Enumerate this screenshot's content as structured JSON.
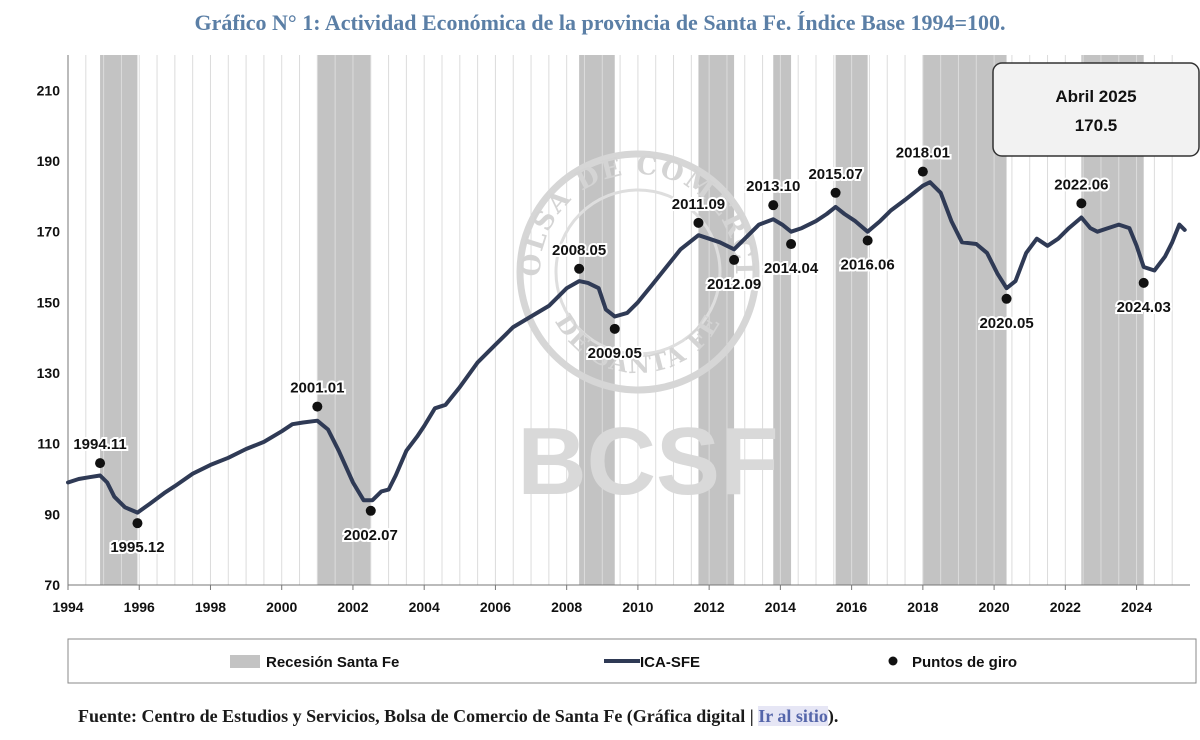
{
  "title": "Gráfico N° 1: Actividad Económica de la provincia de Santa Fe. Índice Base 1994=100.",
  "callout": {
    "line1": "Abril 2025",
    "line2": "170.5"
  },
  "watermark": {
    "seal_top": "BOLSA DE COMERCIO",
    "seal_bottom": "DE SANTA FE",
    "text": "BCSF"
  },
  "source": {
    "text": "Fuente: Centro de Estudios y Servicios, Bolsa de Comercio de Santa Fe (Gráfica digital | ",
    "link": "Ir al sitio",
    "close": ")."
  },
  "colors": {
    "line": "#2f3a55",
    "recession": "#c3c3c3",
    "title": "#5b7fa6",
    "point": "#111111"
  },
  "chart_data": {
    "type": "line",
    "ylim": [
      70,
      220
    ],
    "yticks": [
      70,
      90,
      110,
      130,
      150,
      170,
      190,
      210
    ],
    "xlim": [
      1994.0,
      2025.5
    ],
    "xticks": [
      "1994",
      "1996",
      "1998",
      "2000",
      "2002",
      "2004",
      "2006",
      "2008",
      "2010",
      "2012",
      "2014",
      "2016",
      "2018",
      "2020",
      "2022",
      "2024"
    ],
    "grid": "vertical",
    "legend": [
      {
        "kind": "recession",
        "label": "Recesión Santa Fe"
      },
      {
        "kind": "line",
        "label": "ICA-SFE"
      },
      {
        "kind": "point",
        "label": "Puntos de giro"
      }
    ],
    "recessions": [
      [
        1994.9,
        1995.95
      ],
      [
        2001.0,
        2002.5
      ],
      [
        2008.35,
        2009.35
      ],
      [
        2011.7,
        2012.7
      ],
      [
        2013.8,
        2014.3
      ],
      [
        2015.55,
        2016.45
      ],
      [
        2018.0,
        2020.35
      ],
      [
        2022.45,
        2024.2
      ]
    ],
    "series": [
      {
        "name": "ICA-SFE",
        "x": [
          1994.0,
          1994.3,
          1994.6,
          1994.9,
          1995.1,
          1995.3,
          1995.6,
          1995.95,
          1996.3,
          1996.7,
          1997.0,
          1997.5,
          1998.0,
          1998.5,
          1999.0,
          1999.5,
          2000.0,
          2000.3,
          2000.6,
          2001.0,
          2001.3,
          2001.6,
          2002.0,
          2002.3,
          2002.55,
          2002.8,
          2003.0,
          2003.2,
          2003.5,
          2003.8,
          2004.0,
          2004.3,
          2004.6,
          2005.0,
          2005.5,
          2006.0,
          2006.5,
          2007.0,
          2007.5,
          2008.0,
          2008.35,
          2008.6,
          2008.9,
          2009.1,
          2009.35,
          2009.7,
          2010.0,
          2010.4,
          2010.8,
          2011.2,
          2011.7,
          2012.0,
          2012.3,
          2012.7,
          2013.0,
          2013.4,
          2013.8,
          2014.05,
          2014.3,
          2014.6,
          2015.0,
          2015.3,
          2015.55,
          2015.8,
          2016.1,
          2016.45,
          2016.8,
          2017.1,
          2017.5,
          2018.0,
          2018.2,
          2018.5,
          2018.8,
          2019.1,
          2019.5,
          2019.8,
          2020.1,
          2020.35,
          2020.6,
          2020.9,
          2021.2,
          2021.5,
          2021.8,
          2022.1,
          2022.45,
          2022.7,
          2022.9,
          2023.2,
          2023.5,
          2023.8,
          2024.0,
          2024.2,
          2024.5,
          2024.8,
          2025.0,
          2025.2,
          2025.35
        ],
        "values": [
          99,
          100,
          100.5,
          101,
          99,
          95,
          92,
          90.5,
          93,
          96,
          98,
          101.5,
          104,
          106,
          108.5,
          110.5,
          113.5,
          115.5,
          116,
          116.5,
          114,
          108,
          99,
          94,
          94,
          96.5,
          97,
          101,
          108,
          112,
          115,
          120,
          121,
          126,
          133,
          138,
          143,
          146,
          149,
          154,
          156,
          155.5,
          154,
          148,
          146,
          147,
          150,
          155,
          160,
          165,
          169,
          168,
          167,
          165,
          168,
          172,
          173.5,
          172,
          170,
          171,
          173,
          175,
          177,
          175,
          173,
          170,
          173,
          176,
          179,
          183,
          184,
          181,
          173,
          167,
          166.5,
          164,
          158,
          154,
          156,
          164,
          168,
          166,
          168,
          171,
          174,
          171,
          170,
          171,
          172,
          171,
          166,
          160,
          159,
          163,
          167,
          172,
          170.5
        ]
      }
    ],
    "turning_points": [
      {
        "label": "1994.11",
        "x": 1994.9,
        "y": 104.5
      },
      {
        "label": "1995.12",
        "x": 1995.95,
        "y": 87.5
      },
      {
        "label": "2001.01",
        "x": 2001.0,
        "y": 120.5
      },
      {
        "label": "2002.07",
        "x": 2002.5,
        "y": 91
      },
      {
        "label": "2008.05",
        "x": 2008.35,
        "y": 159.5
      },
      {
        "label": "2009.05",
        "x": 2009.35,
        "y": 142.5
      },
      {
        "label": "2011.09",
        "x": 2011.7,
        "y": 172.5
      },
      {
        "label": "2012.09",
        "x": 2012.7,
        "y": 162
      },
      {
        "label": "2013.10",
        "x": 2013.8,
        "y": 177.5
      },
      {
        "label": "2014.04",
        "x": 2014.3,
        "y": 166.5
      },
      {
        "label": "2015.07",
        "x": 2015.55,
        "y": 181
      },
      {
        "label": "2016.06",
        "x": 2016.45,
        "y": 167.5
      },
      {
        "label": "2018.01",
        "x": 2018.0,
        "y": 187
      },
      {
        "label": "2020.05",
        "x": 2020.35,
        "y": 151
      },
      {
        "label": "2022.06",
        "x": 2022.45,
        "y": 178
      },
      {
        "label": "2024.03",
        "x": 2024.2,
        "y": 155.5
      }
    ]
  }
}
